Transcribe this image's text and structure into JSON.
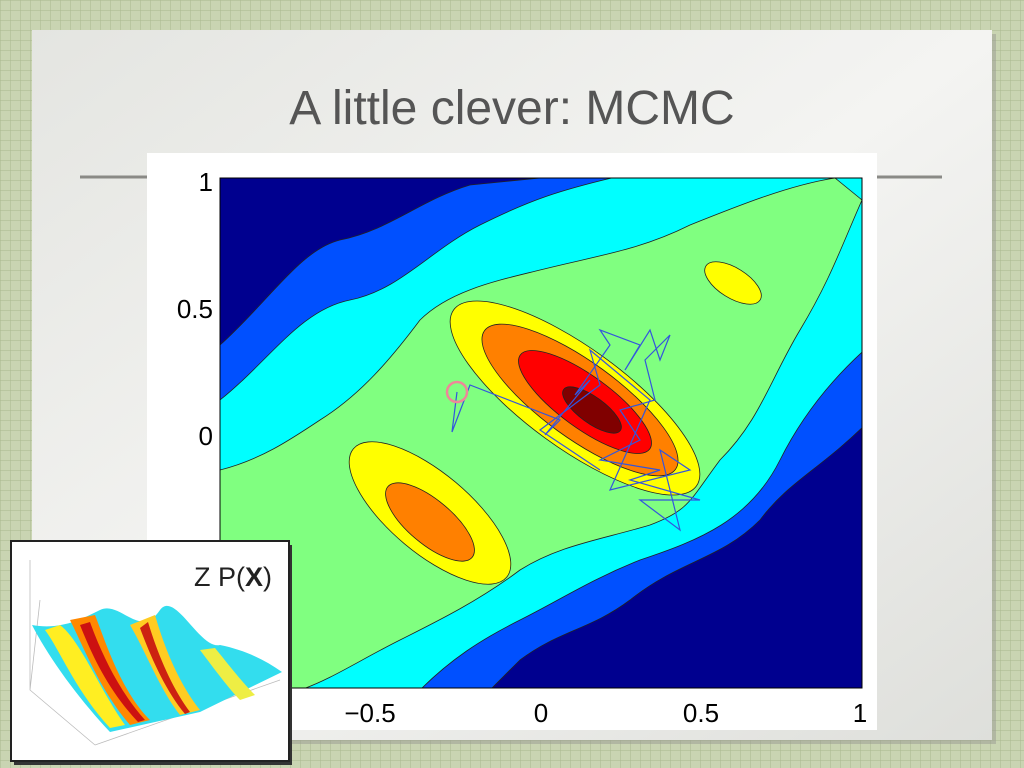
{
  "slide": {
    "title": "A little clever: MCMC"
  },
  "figure": {
    "x_tick_labels": [
      "−0.5",
      "0",
      "0.5",
      "1"
    ],
    "y_tick_labels": [
      "1",
      "0.5",
      "0"
    ]
  },
  "inset": {
    "label_prefix": "Z P(",
    "label_bold": "X",
    "label_suffix": ")"
  }
}
